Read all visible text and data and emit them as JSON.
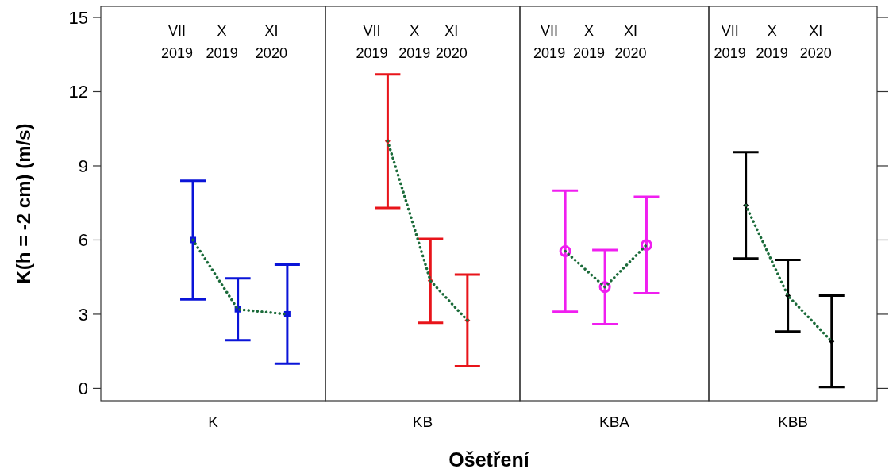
{
  "chart_data": [
    {
      "type": "scatter",
      "ylabel": "K(h = -2 cm) (m/s)",
      "xlabel": "K",
      "annotations": [
        "Ošetření"
      ],
      "categories": [
        "VII 2019",
        "X 2019",
        "XI 2020"
      ],
      "ylim": [
        -0.5,
        15.45
      ],
      "yticks": [
        0,
        3,
        6,
        9,
        12,
        15
      ],
      "series": [
        {
          "type": "scatter",
          "color": "#0a14d8",
          "marker": "square",
          "values": [
            6.0,
            3.2,
            3.0
          ],
          "errors": [
            2.4,
            1.25,
            2.0
          ]
        },
        {
          "type": "line",
          "color": "#1b6b3a",
          "line_style": "dotted",
          "marker": "none",
          "values": [
            6.0,
            3.2,
            3.0
          ]
        }
      ]
    },
    {
      "type": "scatter",
      "xlabel": "KB",
      "tick_labels": "x",
      "categories": [
        "VII 2019",
        "X 2019",
        "XI 2020"
      ],
      "ylim": [
        -0.5,
        15.45
      ],
      "yticks": [
        0,
        3,
        6,
        9,
        12,
        15
      ],
      "series": [
        {
          "type": "scatter",
          "color": "#e8141a",
          "marker": "diamond",
          "values": [
            10.0,
            4.35,
            2.75
          ],
          "errors": [
            2.7,
            1.7,
            1.85
          ]
        },
        {
          "type": "line",
          "color": "#1b6b3a",
          "line_style": "dotted",
          "marker": "none",
          "values": [
            10.0,
            4.35,
            2.75
          ]
        }
      ]
    },
    {
      "type": "scatter",
      "xlabel": "KBA",
      "tick_labels": "x",
      "categories": [
        "VII 2019",
        "X 2019",
        "XI 2020"
      ],
      "ylim": [
        -0.5,
        15.45
      ],
      "yticks": [
        0,
        3,
        6,
        9,
        12,
        15
      ],
      "series": [
        {
          "type": "scatter",
          "color": "#f01ef0",
          "marker": "circle",
          "values": [
            5.55,
            4.1,
            5.8
          ],
          "errors": [
            2.45,
            1.5,
            1.95
          ]
        },
        {
          "type": "line",
          "color": "#1b6b3a",
          "line_style": "dotted",
          "marker": "none",
          "values": [
            5.55,
            4.1,
            5.8
          ]
        }
      ]
    },
    {
      "type": "scatter",
      "xlabel": "KBB",
      "tick_labels": "x",
      "categories": [
        "VII 2019",
        "X 2019",
        "XI 2020"
      ],
      "ylim": [
        -0.5,
        15.45
      ],
      "yticks": [
        0,
        3,
        6,
        9,
        12,
        15
      ],
      "series": [
        {
          "type": "scatter",
          "color": "#000000",
          "marker": "diamond",
          "values": [
            7.4,
            3.75,
            1.9
          ],
          "errors": [
            2.15,
            1.45,
            1.85
          ]
        },
        {
          "type": "line",
          "color": "#1b6b3a",
          "line_style": "dotted",
          "marker": "none",
          "values": [
            7.4,
            3.75,
            1.9
          ]
        }
      ]
    }
  ]
}
